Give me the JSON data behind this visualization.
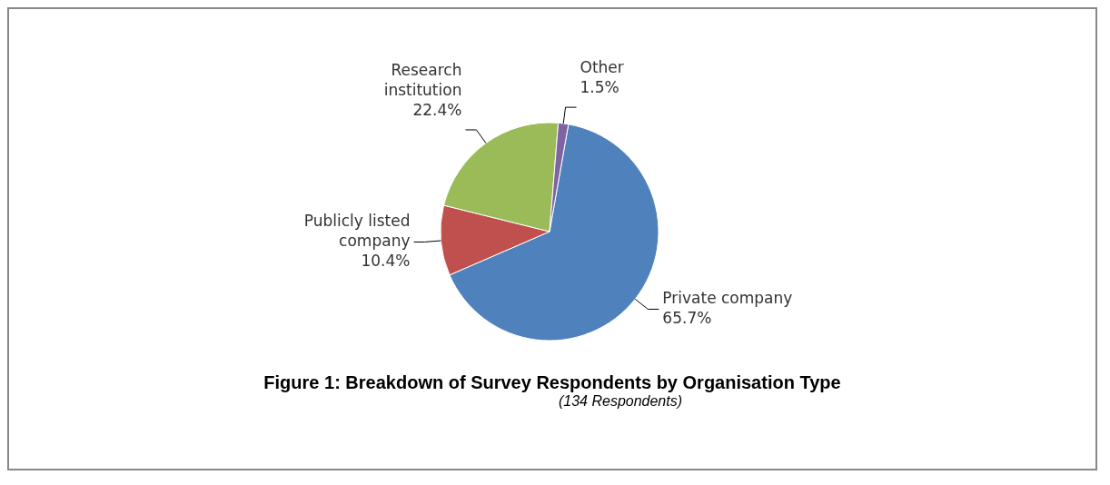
{
  "chart_data": {
    "type": "pie",
    "title": "Figure 1: Breakdown of Survey Respondents by Organisation Type",
    "subtitle": "(134 Respondents)",
    "categories": [
      "Private company",
      "Publicly listed company",
      "Research institution",
      "Other"
    ],
    "values": [
      65.7,
      10.4,
      22.4,
      1.5
    ],
    "colors": [
      "#4f81bd",
      "#c0504d",
      "#9bbb59",
      "#8064a2"
    ],
    "value_labels": [
      "65.7%",
      "10.4%",
      "22.4%",
      "1.5%"
    ]
  }
}
